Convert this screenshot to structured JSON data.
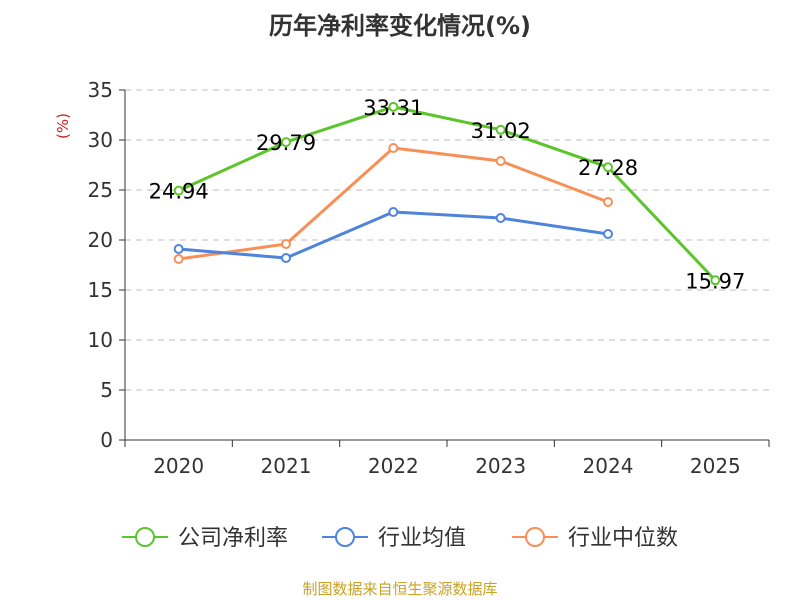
{
  "title": "历年净利率变化情况(%)",
  "footer": "制图数据来自恒生聚源数据库",
  "chart_data": {
    "type": "line",
    "title": "历年净利率变化情况(%)",
    "ylabel": "(%)",
    "xlabel": "",
    "categories": [
      "2020",
      "2021",
      "2022",
      "2023",
      "2024",
      "2025"
    ],
    "ylim": [
      0,
      35
    ],
    "yticks": [
      0,
      5,
      10,
      15,
      20,
      25,
      30,
      35
    ],
    "grid": true,
    "legend_position": "bottom",
    "series": [
      {
        "name": "公司净利率",
        "color": "#5cc52b",
        "values": [
          24.94,
          29.79,
          33.31,
          31.02,
          27.28,
          15.97
        ],
        "labels": [
          "24.94",
          "29.79",
          "33.31",
          "31.02",
          "27.28",
          "15.97"
        ]
      },
      {
        "name": "行业均值",
        "color": "#4f84dc",
        "values": [
          19.1,
          18.2,
          22.8,
          22.2,
          20.6,
          null
        ]
      },
      {
        "name": "行业中位数",
        "color": "#f88f56",
        "values": [
          18.1,
          19.6,
          29.2,
          27.9,
          23.8,
          null
        ]
      }
    ]
  }
}
